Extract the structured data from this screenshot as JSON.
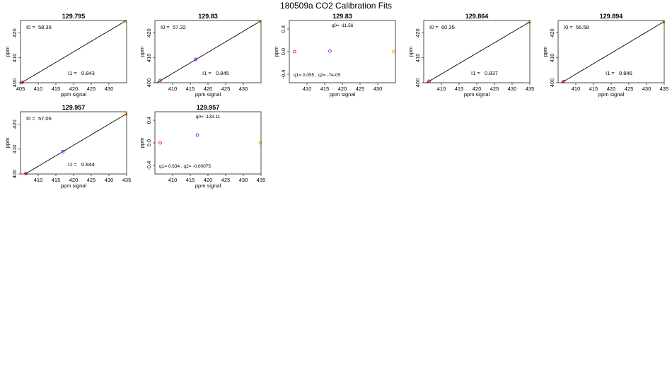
{
  "title": "180509a   CO2 Calibration Fits",
  "colors": {
    "low": "#ff0000",
    "mid": "#9900ff",
    "high": "#ff9900",
    "line": "#000000"
  },
  "chart_data": [
    {
      "type": "line",
      "kind": "linear",
      "title": "129.795",
      "xlabel": "ppm signal",
      "ylabel": "ppm",
      "xlim": [
        405,
        435
      ],
      "ylim": [
        400,
        425
      ],
      "xticks": [
        "405",
        "410",
        "415",
        "420",
        "425",
        "430"
      ],
      "yticks": [
        "400",
        "410",
        "420"
      ],
      "fit": {
        "intercept": 58.36,
        "slope": 0.843
      },
      "points": [
        {
          "x": 405.5,
          "y": 400.2,
          "color": "low"
        },
        {
          "x": 434.5,
          "y": 424.6,
          "color": "high"
        }
      ],
      "annotations": [
        {
          "label": "I0 =",
          "value": "58.36",
          "pos": "top-left"
        },
        {
          "label": "I1 =",
          "value": "0.843",
          "pos": "bottom-right"
        }
      ]
    },
    {
      "type": "line",
      "kind": "linear",
      "title": "129.83",
      "xlabel": "ppm signal",
      "ylabel": "ppm",
      "xlim": [
        405,
        435
      ],
      "ylim": [
        400,
        425
      ],
      "xticks": [
        "410",
        "415",
        "420",
        "425",
        "430"
      ],
      "yticks": [
        "400",
        "410",
        "420"
      ],
      "fit": {
        "intercept": 57.32,
        "slope": 0.845
      },
      "points": [
        {
          "x": 406.5,
          "y": 400.9,
          "color": "low"
        },
        {
          "x": 416.5,
          "y": 409.4,
          "color": "mid"
        },
        {
          "x": 434.5,
          "y": 424.6,
          "color": "high"
        }
      ],
      "annotations": [
        {
          "label": "I0 =",
          "value": "57.32",
          "pos": "top-left"
        },
        {
          "label": "I1 =",
          "value": "0.845",
          "pos": "bottom-right"
        }
      ]
    },
    {
      "type": "line",
      "kind": "quadratic",
      "title": "129.83",
      "xlabel": "ppm signal",
      "ylabel": "ppm",
      "xlim": [
        405,
        435
      ],
      "ylim": [
        -0.55,
        0.55
      ],
      "xticks": [
        "410",
        "415",
        "420",
        "425",
        "430"
      ],
      "yticks": [
        "-0.4",
        "0.0",
        "0.4"
      ],
      "fit": {
        "q0": -11.56,
        "q1": 0.055,
        "q2": -7e-05
      },
      "points": [
        {
          "x": 406.5,
          "y": 0.0,
          "color": "low"
        },
        {
          "x": 416.5,
          "y": 0.01,
          "color": "mid"
        },
        {
          "x": 434.5,
          "y": 0.0,
          "color": "high"
        }
      ],
      "annotations": [
        {
          "text": "q0= -11.56",
          "pos": "top-center"
        },
        {
          "text": "q1= 0.055 , q2= -7e-05",
          "pos": "bottom-left"
        }
      ]
    },
    {
      "type": "line",
      "kind": "linear",
      "title": "129.864",
      "xlabel": "ppm signal",
      "ylabel": "ppm",
      "xlim": [
        405,
        435
      ],
      "ylim": [
        400,
        425
      ],
      "xticks": [
        "410",
        "415",
        "420",
        "425",
        "430",
        "435"
      ],
      "yticks": [
        "400",
        "410",
        "420"
      ],
      "fit": {
        "intercept": 60.35,
        "slope": 0.837
      },
      "points": [
        {
          "x": 406.5,
          "y": 400.6,
          "color": "low"
        },
        {
          "x": 434.8,
          "y": 424.3,
          "color": "high"
        }
      ],
      "annotations": [
        {
          "label": "I0 =",
          "value": "60.35",
          "pos": "top-left"
        },
        {
          "label": "I1 =",
          "value": "0.837",
          "pos": "bottom-right"
        }
      ]
    },
    {
      "type": "line",
      "kind": "linear",
      "title": "129.894",
      "xlabel": "ppm signal",
      "ylabel": "ppm",
      "xlim": [
        405,
        435
      ],
      "ylim": [
        400,
        425
      ],
      "xticks": [
        "410",
        "415",
        "420",
        "425",
        "430",
        "435"
      ],
      "yticks": [
        "400",
        "410",
        "420"
      ],
      "fit": {
        "intercept": 56.58,
        "slope": 0.846
      },
      "points": [
        {
          "x": 406.5,
          "y": 400.5,
          "color": "low"
        },
        {
          "x": 434.8,
          "y": 424.4,
          "color": "high"
        }
      ],
      "annotations": [
        {
          "label": "I0 =",
          "value": "56.58",
          "pos": "top-left"
        },
        {
          "label": "I1 =",
          "value": "0.846",
          "pos": "bottom-right"
        }
      ]
    },
    {
      "type": "line",
      "kind": "linear",
      "title": "129.957",
      "xlabel": "ppm signal",
      "ylabel": "ppm",
      "xlim": [
        405,
        435
      ],
      "ylim": [
        400,
        425
      ],
      "xticks": [
        "410",
        "415",
        "420",
        "425",
        "430",
        "435"
      ],
      "yticks": [
        "400",
        "410",
        "420"
      ],
      "fit": {
        "intercept": 57.06,
        "slope": 0.844
      },
      "points": [
        {
          "x": 406.5,
          "y": 400.2,
          "color": "low"
        },
        {
          "x": 417.0,
          "y": 409.0,
          "color": "mid"
        },
        {
          "x": 434.8,
          "y": 424.0,
          "color": "high"
        }
      ],
      "annotations": [
        {
          "label": "I0 =",
          "value": "57.06",
          "pos": "top-left"
        },
        {
          "label": "I1 =",
          "value": "0.844",
          "pos": "bottom-right"
        }
      ]
    },
    {
      "type": "line",
      "kind": "quadratic",
      "title": "129.957",
      "xlabel": "ppm signal",
      "ylabel": "ppm",
      "xlim": [
        405,
        435
      ],
      "ylim": [
        -0.55,
        0.55
      ],
      "xticks": [
        "410",
        "415",
        "420",
        "425",
        "430",
        "435"
      ],
      "yticks": [
        "-0.4",
        "0.0",
        "0.4"
      ],
      "fit": {
        "q0": -133.11,
        "q1": 0.634,
        "q2": -0.00075
      },
      "points": [
        {
          "x": 406.5,
          "y": 0.0,
          "color": "low"
        },
        {
          "x": 417.0,
          "y": 0.14,
          "color": "mid"
        },
        {
          "x": 434.8,
          "y": 0.0,
          "color": "high"
        }
      ],
      "annotations": [
        {
          "text": "q0= -133.11",
          "pos": "top-center"
        },
        {
          "text": "q1= 0.634 , q2= -0.00075",
          "pos": "bottom-left"
        }
      ]
    }
  ]
}
